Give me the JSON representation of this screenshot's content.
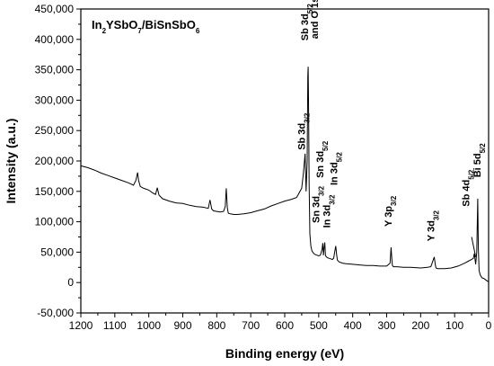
{
  "chart_data": {
    "type": "line",
    "title": "In2YSbO7/BiSnSbO6",
    "title_parts": [
      {
        "t": "In",
        "sub": false
      },
      {
        "t": "2",
        "sub": true
      },
      {
        "t": "YSbO",
        "sub": false
      },
      {
        "t": "7",
        "sub": true
      },
      {
        "t": "/BiSnSbO",
        "sub": false
      },
      {
        "t": "6",
        "sub": true
      }
    ],
    "xlabel": "Binding energy (eV)",
    "ylabel": "Intensity (a.u.)",
    "xlim": [
      1200,
      0
    ],
    "ylim": [
      -50000,
      450000
    ],
    "x_reversed": true,
    "x_ticks": [
      1200,
      1100,
      1000,
      900,
      800,
      700,
      600,
      500,
      400,
      300,
      200,
      100,
      0
    ],
    "y_ticks": [
      -50000,
      0,
      50000,
      100000,
      150000,
      200000,
      250000,
      300000,
      350000,
      400000,
      450000
    ],
    "y_tick_labels": [
      "-50,000",
      "0",
      "50,000",
      "100,000",
      "150,000",
      "200,000",
      "250,000",
      "300,000",
      "350,000",
      "400,000",
      "450,000"
    ],
    "grid": false,
    "series": [
      {
        "x": [
          1200,
          1180,
          1160,
          1140,
          1120,
          1100,
          1080,
          1060,
          1045,
          1038,
          1033,
          1030,
          1025,
          1015,
          1000,
          990,
          980,
          975,
          970,
          960,
          940,
          920,
          900,
          880,
          860,
          840,
          825,
          820,
          815,
          810,
          800,
          790,
          780,
          775,
          772,
          769,
          766,
          760,
          750,
          740,
          720,
          700,
          680,
          660,
          640,
          620,
          600,
          580,
          565,
          560,
          555,
          550,
          545,
          540,
          537,
          534,
          532,
          531,
          530,
          528,
          526,
          523,
          520,
          515,
          510,
          505,
          500,
          495,
          490,
          488,
          486,
          484,
          482,
          480,
          475,
          470,
          465,
          460,
          456,
          453,
          450,
          447,
          445,
          440,
          430,
          420,
          400,
          380,
          360,
          340,
          320,
          300,
          290,
          287,
          285,
          283,
          280,
          270,
          250,
          230,
          200,
          180,
          170,
          165,
          160,
          157,
          155,
          150,
          130,
          110,
          90,
          70,
          60,
          50,
          45,
          42,
          40,
          38,
          35,
          32,
          30,
          28,
          26,
          24,
          22,
          20,
          15,
          10,
          5,
          0
        ],
        "y": [
          192000,
          189000,
          185000,
          180000,
          176000,
          172000,
          168000,
          164000,
          160000,
          168000,
          181000,
          168000,
          158000,
          155000,
          152000,
          148000,
          145000,
          156000,
          144000,
          138000,
          134000,
          131000,
          130000,
          127000,
          125000,
          124000,
          122000,
          136000,
          121000,
          118000,
          117000,
          116000,
          117000,
          125000,
          155000,
          123000,
          114000,
          113000,
          112000,
          112000,
          113000,
          115000,
          118000,
          121000,
          126000,
          130000,
          134000,
          137000,
          140000,
          145000,
          150000,
          155000,
          180000,
          212000,
          150000,
          200000,
          340000,
          355000,
          300000,
          160000,
          80000,
          60000,
          52000,
          48000,
          46000,
          45000,
          44000,
          45000,
          55000,
          65000,
          45000,
          58000,
          66000,
          44000,
          41000,
          40000,
          39000,
          38000,
          40000,
          50000,
          60000,
          45000,
          37000,
          34000,
          32000,
          31000,
          30000,
          29000,
          28000,
          28000,
          27000,
          27000,
          32000,
          58000,
          40000,
          28000,
          26000,
          26000,
          25000,
          25000,
          24000,
          25000,
          26000,
          34000,
          42000,
          30000,
          24000,
          23000,
          23000,
          24000,
          27000,
          32000,
          35000,
          38000,
          40000,
          48000,
          38000,
          30000,
          50000,
          138000,
          55000,
          20000,
          15000,
          12000,
          10000,
          8000,
          7000,
          5000,
          3000,
          1000
        ]
      }
    ],
    "annotations": [
      {
        "label": [
          {
            "t": "Sb 3d",
            "sub": false
          },
          {
            "t": "5/2",
            "sub": true
          }
        ],
        "label2": "and O 1s",
        "x": 531,
        "y": 398000
      },
      {
        "label": [
          {
            "t": "Sb 3d",
            "sub": false
          },
          {
            "t": "3/2",
            "sub": true
          }
        ],
        "x": 541,
        "y": 218000
      },
      {
        "label": [
          {
            "t": "Sn 3d",
            "sub": false
          },
          {
            "t": "5/2",
            "sub": true
          }
        ],
        "x": 486,
        "y": 172000
      },
      {
        "label": [
          {
            "t": "In 3d",
            "sub": false
          },
          {
            "t": "5/2",
            "sub": true
          }
        ],
        "x": 445,
        "y": 160000
      },
      {
        "label": [
          {
            "t": "Sn 3d",
            "sub": false
          },
          {
            "t": "3/2",
            "sub": true
          }
        ],
        "x": 498,
        "y": 98000
      },
      {
        "label": [
          {
            "t": "In 3d",
            "sub": false
          },
          {
            "t": "3/2",
            "sub": true
          }
        ],
        "x": 466,
        "y": 90000
      },
      {
        "label": [
          {
            "t": "Y 3p",
            "sub": false
          },
          {
            "t": "3/2",
            "sub": true
          }
        ],
        "x": 285,
        "y": 92000
      },
      {
        "label": [
          {
            "t": "Y 3d",
            "sub": false
          },
          {
            "t": "3/2",
            "sub": true
          }
        ],
        "x": 160,
        "y": 68000
      },
      {
        "label": [
          {
            "t": "Sb 4d",
            "sub": false
          },
          {
            "t": "5/2",
            "sub": true
          }
        ],
        "x": 57,
        "y": 125000
      },
      {
        "label": [
          {
            "t": "Bi 5d",
            "sub": false
          },
          {
            "t": "5/2",
            "sub": true
          }
        ],
        "x": 24,
        "y": 173000
      }
    ]
  }
}
